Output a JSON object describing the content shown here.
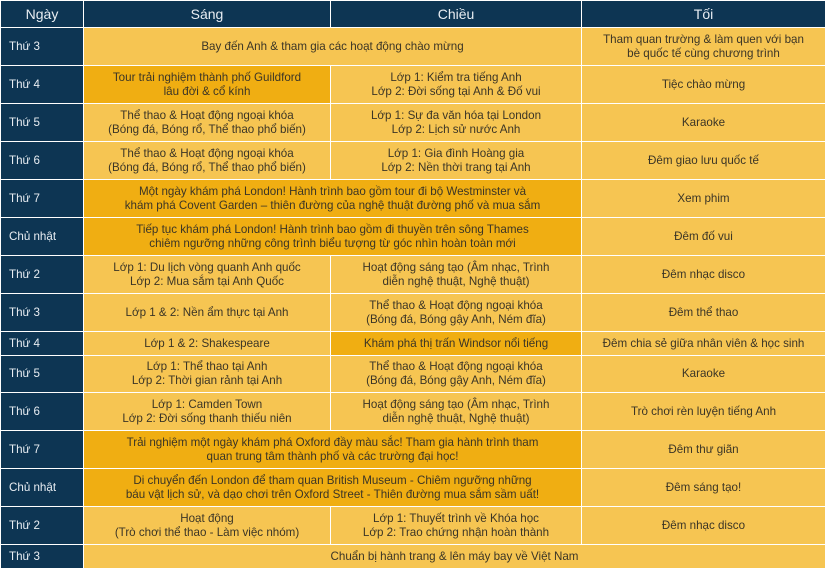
{
  "colors": {
    "header_bg": "#0d3553",
    "cell_bg": "#f6c552",
    "highlight_bg": "#f0ae12"
  },
  "headers": [
    "Ngày",
    "Sáng",
    "Chiều",
    "Tối"
  ],
  "rows": [
    {
      "day": "Thứ 3",
      "h": 38,
      "cells": [
        {
          "text": "Bay đến Anh & tham gia các hoạt động chào mừng",
          "colspan": 2
        },
        {
          "text": "Tham quan trường & làm quen với bạn\nbè quốc tế cùng chương trình"
        }
      ]
    },
    {
      "day": "Thứ 4",
      "h": 38,
      "cells": [
        {
          "text": "Tour trải nghiệm thành phố Guildford\nlâu đời & cổ kính",
          "highlight": true
        },
        {
          "text": "Lớp 1: Kiểm tra tiếng Anh\nLớp 2: Đời sống tại Anh & Đố vui"
        },
        {
          "text": "Tiệc chào mừng"
        }
      ]
    },
    {
      "day": "Thứ 5",
      "h": 38,
      "cells": [
        {
          "text": "Thể thao & Hoạt động ngoại khóa\n(Bóng đá, Bóng rổ, Thể thao phổ biến)"
        },
        {
          "text": "Lớp 1: Sự đa văn hóa tại London\nLớp 2: Lịch sử nước Anh"
        },
        {
          "text": "Karaoke"
        }
      ]
    },
    {
      "day": "Thứ 6",
      "h": 38,
      "cells": [
        {
          "text": "Thể thao & Hoạt động ngoại khóa\n(Bóng đá, Bóng rổ, Thể thao phổ biến)"
        },
        {
          "text": "Lớp 1: Gia đình Hoàng gia\nLớp 2: Nền thời trang tại Anh"
        },
        {
          "text": "Đêm giao lưu quốc tế"
        }
      ]
    },
    {
      "day": "Thứ 7",
      "h": 38,
      "cells": [
        {
          "text": "Một ngày khám phá London! Hành trình bao gồm tour đi bộ Westminster và\nkhám phá Covent Garden – thiên đường của nghệ thuật đường phố và mua sắm",
          "colspan": 2,
          "highlight": true
        },
        {
          "text": "Xem phim"
        }
      ]
    },
    {
      "day": "Chủ nhật",
      "h": 38,
      "cells": [
        {
          "text": "Tiếp tục khám phá London! Hành trình bao gồm đi thuyền trên sông Thames\nchiêm ngưỡng những công trình biểu tượng từ góc nhìn hoàn toàn mới",
          "colspan": 2,
          "highlight": true
        },
        {
          "text": "Đêm đố vui"
        }
      ]
    },
    {
      "day": "Thứ 2",
      "h": 38,
      "cells": [
        {
          "text": "Lớp 1: Du lịch vòng quanh Anh quốc\nLớp 2: Mua sắm tại Anh Quốc"
        },
        {
          "text": "Hoạt động sáng tạo (Âm nhạc, Trình\ndiễn nghệ thuật, Nghệ thuật)"
        },
        {
          "text": "Đêm nhạc disco"
        }
      ]
    },
    {
      "day": "Thứ 3",
      "h": 38,
      "cells": [
        {
          "text": "Lớp 1 & 2: Nền ẩm thực tại Anh"
        },
        {
          "text": "Thể thao & Hoạt động ngoại khóa\n(Bóng đá, Bóng gậy Anh, Ném đĩa)"
        },
        {
          "text": "Đêm thể thao"
        }
      ]
    },
    {
      "day": "Thứ 4",
      "h": 24,
      "cells": [
        {
          "text": "Lớp 1 & 2: Shakespeare"
        },
        {
          "text": "Khám phá thị trấn Windsor nổi tiếng",
          "highlight": true
        },
        {
          "text": "Đêm chia sẻ giữa nhân viên & học sinh"
        }
      ]
    },
    {
      "day": "Thứ 5",
      "h": 37,
      "cells": [
        {
          "text": "Lớp 1: Thể thao tại Anh\nLớp 2: Thời gian rảnh tại Anh"
        },
        {
          "text": "Thể thao & Hoạt động ngoại khóa\n(Bóng đá, Bóng gậy Anh, Ném đĩa)"
        },
        {
          "text": "Karaoke"
        }
      ]
    },
    {
      "day": "Thứ 6",
      "h": 38,
      "cells": [
        {
          "text": "Lớp 1: Camden Town\nLớp 2: Đời sống thanh thiếu niên"
        },
        {
          "text": "Hoạt động sáng tạo (Âm nhạc, Trình\ndiễn nghệ thuật, Nghệ thuật)"
        },
        {
          "text": "Trò chơi rèn luyện tiếng Anh"
        }
      ]
    },
    {
      "day": "Thứ 7",
      "h": 38,
      "cells": [
        {
          "text": "Trải nghiệm một ngày khám phá Oxford đầy màu sắc! Tham gia hành trình tham\nquan trung tâm thành phố và các trường đại học!",
          "colspan": 2,
          "highlight": true
        },
        {
          "text": "Đêm thư giãn"
        }
      ]
    },
    {
      "day": "Chủ nhật",
      "h": 38,
      "cells": [
        {
          "text": "Di chuyển đến London để tham quan British Museum - Chiêm ngưỡng những\nbáu vật lịch sử, và dạo chơi trên Oxford Street - Thiên đường mua sắm sầm uất!",
          "colspan": 2,
          "highlight": true
        },
        {
          "text": "Đêm sáng tạo!"
        }
      ]
    },
    {
      "day": "Thứ 2",
      "h": 38,
      "cells": [
        {
          "text": "Hoạt động\n(Trò chơi thể thao - Làm việc nhóm)"
        },
        {
          "text": "Lớp 1: Thuyết trình về Khóa học\nLớp 2: Trao chứng nhận hoàn thành"
        },
        {
          "text": "Đêm nhạc disco"
        }
      ]
    },
    {
      "day": "Thứ 3",
      "h": 24,
      "cells": [
        {
          "text": "Chuẩn bị hành trang & lên máy bay về Việt Nam",
          "colspan": 3
        }
      ]
    }
  ]
}
